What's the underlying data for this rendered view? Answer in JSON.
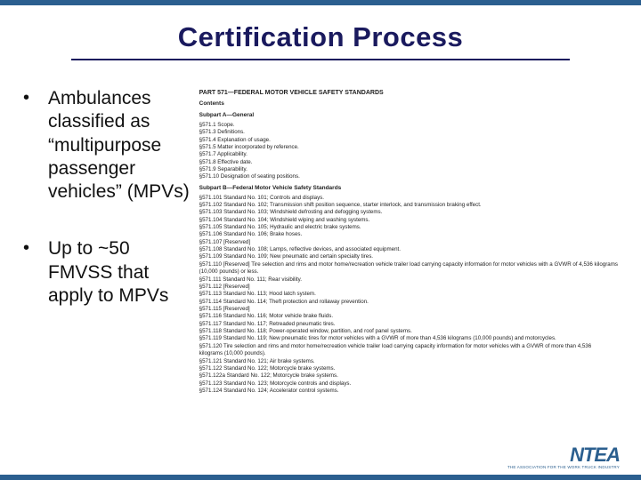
{
  "colors": {
    "bar": "#2b5f8f",
    "title": "#1a1a5e",
    "text": "#111111",
    "background": "#ffffff"
  },
  "title": "Certification Process",
  "bullets": [
    "Ambulances classified as “multipurpose passenger vehicles” (MPVs)",
    "Up to ~50 FMVSS that apply to MPVs"
  ],
  "doc": {
    "part": "PART 571—FEDERAL MOTOR VEHICLE SAFETY STANDARDS",
    "contents": "Contents",
    "subpartA": "Subpart A—General",
    "groupA": [
      "§571.1  Scope.",
      "§571.3  Definitions.",
      "§571.4  Explanation of usage.",
      "§571.5  Matter incorporated by reference.",
      "§571.7  Applicability.",
      "§571.8  Effective date.",
      "§571.9  Separability.",
      "§571.10  Designation of seating positions."
    ],
    "subpartB": "Subpart B—Federal Motor Vehicle Safety Standards",
    "groupB": [
      "§571.101  Standard No. 101; Controls and displays.",
      "§571.102  Standard No. 102; Transmission shift position sequence, starter interlock, and transmission braking effect.",
      "§571.103  Standard No. 103; Windshield defrosting and defogging systems.",
      "§571.104  Standard No. 104; Windshield wiping and washing systems.",
      "§571.105  Standard No. 105; Hydraulic and electric brake systems.",
      "§571.106  Standard No. 106; Brake hoses.",
      "§571.107  [Reserved]",
      "§571.108  Standard No. 108; Lamps, reflective devices, and associated equipment.",
      "§571.109  Standard No. 109; New pneumatic and certain specialty tires.",
      "§571.110  [Reserved] Tire selection and rims and motor home/recreation vehicle trailer load carrying capacity information for motor vehicles with a GVWR of 4,536 kilograms",
      "(10,000 pounds) or less.",
      "§571.111  Standard No. 111; Rear visibility.",
      "§571.112  [Reserved]",
      "§571.113  Standard No. 113; Hood latch system.",
      "§571.114  Standard No. 114; Theft protection and rollaway prevention.",
      "§571.115  [Reserved]",
      "§571.116  Standard No. 116; Motor vehicle brake fluids.",
      "§571.117  Standard No. 117; Retreaded pneumatic tires.",
      "§571.118  Standard No. 118; Power-operated window, partition, and roof panel systems.",
      "§571.119  Standard No. 119; New pneumatic tires for motor vehicles with a GVWR of more than 4,536 kilograms (10,000 pounds) and motorcycles.",
      "§571.120  Tire selection and rims and motor home/recreation vehicle trailer load carrying capacity information for motor vehicles with a GVWR of more than 4,536",
      "kilograms (10,000 pounds).",
      "§571.121  Standard No. 121; Air brake systems.",
      "§571.122  Standard No. 122; Motorcycle brake systems.",
      "§571.122a  Standard No. 122; Motorcycle brake systems.",
      "§571.123  Standard No. 123; Motorcycle controls and displays.",
      "§571.124  Standard No. 124; Accelerator control systems."
    ]
  },
  "logo": {
    "text": "NTEA",
    "tagline": "THE ASSOCIATION FOR THE WORK TRUCK INDUSTRY"
  }
}
